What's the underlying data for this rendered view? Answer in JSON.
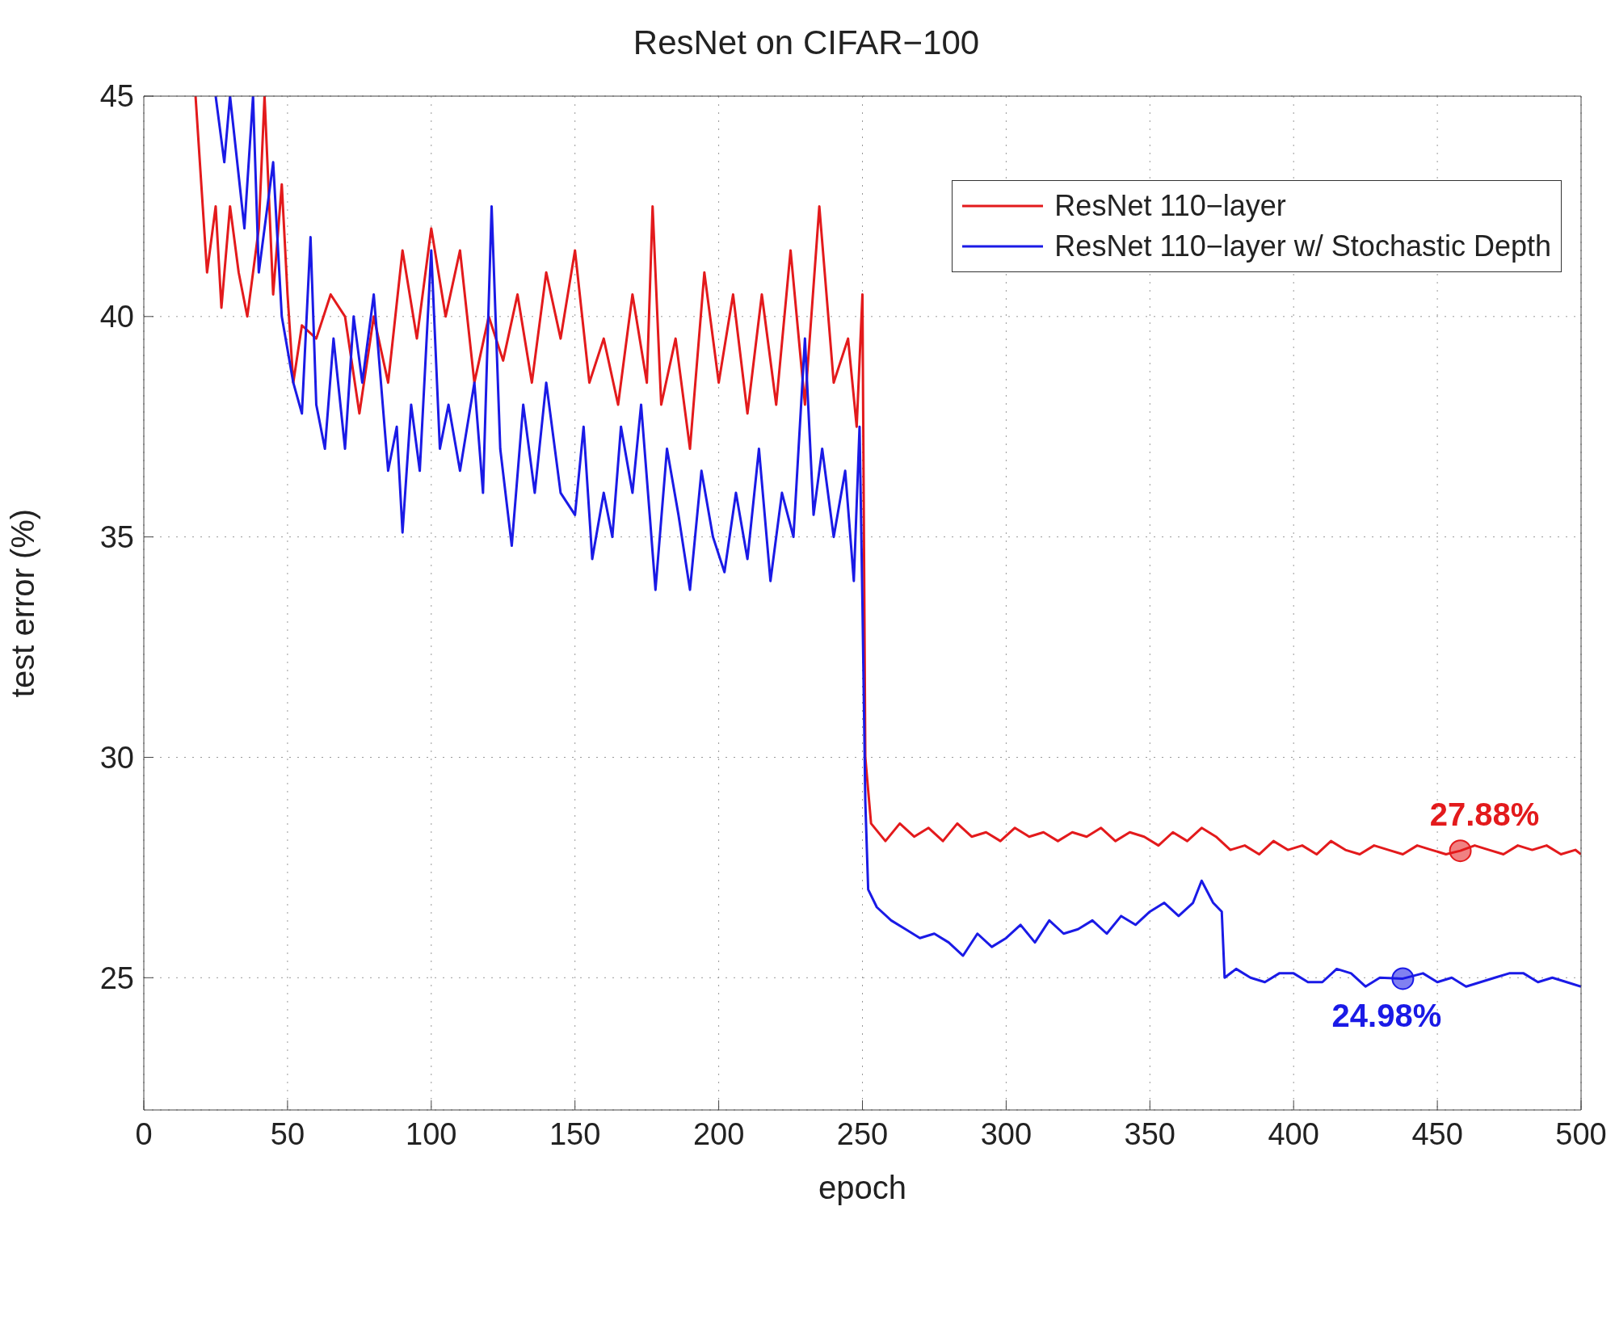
{
  "chart_data": {
    "type": "line",
    "title": "ResNet on CIFAR−100",
    "xlabel": "epoch",
    "ylabel": "test error (%)",
    "xlim": [
      0,
      500
    ],
    "xticks": [
      0,
      50,
      100,
      150,
      200,
      250,
      300,
      350,
      400,
      450,
      500
    ],
    "ylim": [
      22,
      45
    ],
    "yticks": [
      25,
      30,
      35,
      40,
      45
    ],
    "grid": true,
    "legend": "top right",
    "marker": "none",
    "line_style": "solid",
    "series": [
      {
        "name": "ResNet 110−layer",
        "color": "#e31a1c",
        "x": [
          18,
          20,
          22,
          25,
          27,
          30,
          33,
          36,
          40,
          42,
          45,
          48,
          50,
          52,
          55,
          60,
          65,
          70,
          75,
          80,
          85,
          90,
          95,
          100,
          105,
          110,
          115,
          120,
          125,
          130,
          135,
          140,
          145,
          150,
          155,
          160,
          165,
          170,
          175,
          177,
          180,
          185,
          190,
          195,
          200,
          205,
          210,
          215,
          220,
          225,
          230,
          235,
          240,
          245,
          248,
          250,
          251,
          253,
          258,
          263,
          268,
          273,
          278,
          283,
          288,
          293,
          298,
          303,
          308,
          313,
          318,
          323,
          328,
          333,
          338,
          343,
          348,
          353,
          358,
          363,
          368,
          373,
          378,
          383,
          388,
          393,
          398,
          403,
          408,
          413,
          418,
          423,
          428,
          433,
          438,
          443,
          448,
          453,
          458,
          463,
          468,
          473,
          478,
          483,
          488,
          493,
          498,
          500
        ],
        "values": [
          45,
          43,
          41,
          42.5,
          40.2,
          42.5,
          41,
          40,
          42,
          45,
          40.5,
          43,
          40.5,
          38.5,
          39.8,
          39.5,
          40.5,
          40,
          37.8,
          40,
          38.5,
          41.5,
          39.5,
          42,
          40,
          41.5,
          38.5,
          40,
          39,
          40.5,
          38.5,
          41,
          39.5,
          41.5,
          38.5,
          39.5,
          38,
          40.5,
          38.5,
          42.5,
          38,
          39.5,
          37,
          41,
          38.5,
          40.5,
          37.8,
          40.5,
          38,
          41.5,
          38,
          42.5,
          38.5,
          39.5,
          37.5,
          40.5,
          30,
          28.5,
          28.1,
          28.5,
          28.2,
          28.4,
          28.1,
          28.5,
          28.2,
          28.3,
          28.1,
          28.4,
          28.2,
          28.3,
          28.1,
          28.3,
          28.2,
          28.4,
          28.1,
          28.3,
          28.2,
          28,
          28.3,
          28.1,
          28.4,
          28.2,
          27.9,
          28,
          27.8,
          28.1,
          27.9,
          28,
          27.8,
          28.1,
          27.9,
          27.8,
          28,
          27.9,
          27.8,
          28,
          27.9,
          27.8,
          27.88,
          28,
          27.9,
          27.8,
          28,
          27.9,
          28,
          27.8,
          27.9,
          27.8
        ]
      },
      {
        "name": "ResNet 110−layer w/ Stochastic Depth",
        "color": "#1a1ae6",
        "x": [
          25,
          28,
          30,
          35,
          38,
          40,
          45,
          48,
          52,
          55,
          58,
          60,
          63,
          66,
          70,
          73,
          76,
          80,
          85,
          88,
          90,
          93,
          96,
          100,
          103,
          106,
          110,
          115,
          118,
          121,
          124,
          128,
          132,
          136,
          140,
          145,
          150,
          153,
          156,
          160,
          163,
          166,
          170,
          173,
          176,
          178,
          182,
          186,
          190,
          194,
          198,
          202,
          206,
          210,
          214,
          218,
          222,
          226,
          230,
          233,
          236,
          240,
          244,
          247,
          249,
          250,
          251,
          252,
          255,
          260,
          265,
          270,
          275,
          280,
          285,
          290,
          295,
          300,
          305,
          310,
          315,
          320,
          325,
          330,
          335,
          340,
          345,
          350,
          355,
          360,
          365,
          368,
          372,
          375,
          376,
          380,
          385,
          390,
          395,
          400,
          405,
          410,
          415,
          420,
          425,
          430,
          438,
          445,
          450,
          455,
          460,
          465,
          470,
          475,
          480,
          485,
          490,
          495,
          500
        ],
        "values": [
          45,
          43.5,
          45,
          42,
          45,
          41,
          43.5,
          40,
          38.5,
          37.8,
          41.8,
          38,
          37,
          39.5,
          37,
          40,
          38.5,
          40.5,
          36.5,
          37.5,
          35.1,
          38,
          36.5,
          41.5,
          37,
          38,
          36.5,
          38.5,
          36,
          42.5,
          37,
          34.8,
          38,
          36,
          38.5,
          36,
          35.5,
          37.5,
          34.5,
          36,
          35,
          37.5,
          36,
          38,
          35.5,
          33.8,
          37,
          35.5,
          33.8,
          36.5,
          35,
          34.2,
          36,
          34.5,
          37,
          34,
          36,
          35,
          39.5,
          35.5,
          37,
          35,
          36.5,
          34,
          37.5,
          33.5,
          29,
          27,
          26.6,
          26.3,
          26.1,
          25.9,
          26,
          25.8,
          25.5,
          26,
          25.7,
          25.9,
          26.2,
          25.8,
          26.3,
          26,
          26.1,
          26.3,
          26,
          26.4,
          26.2,
          26.5,
          26.7,
          26.4,
          26.7,
          27.2,
          26.7,
          26.5,
          25,
          25.2,
          25,
          24.9,
          25.1,
          25.1,
          24.9,
          24.9,
          25.2,
          25.1,
          24.8,
          25,
          24.98,
          25.1,
          24.9,
          25,
          24.8,
          24.9,
          25,
          25.1,
          25.1,
          24.9,
          25,
          24.9,
          24.8
        ]
      }
    ],
    "annotations": [
      {
        "text": "27.88%",
        "x": 458,
        "y": 27.88
      },
      {
        "text": "24.98%",
        "x": 438,
        "y": 24.98
      }
    ]
  }
}
